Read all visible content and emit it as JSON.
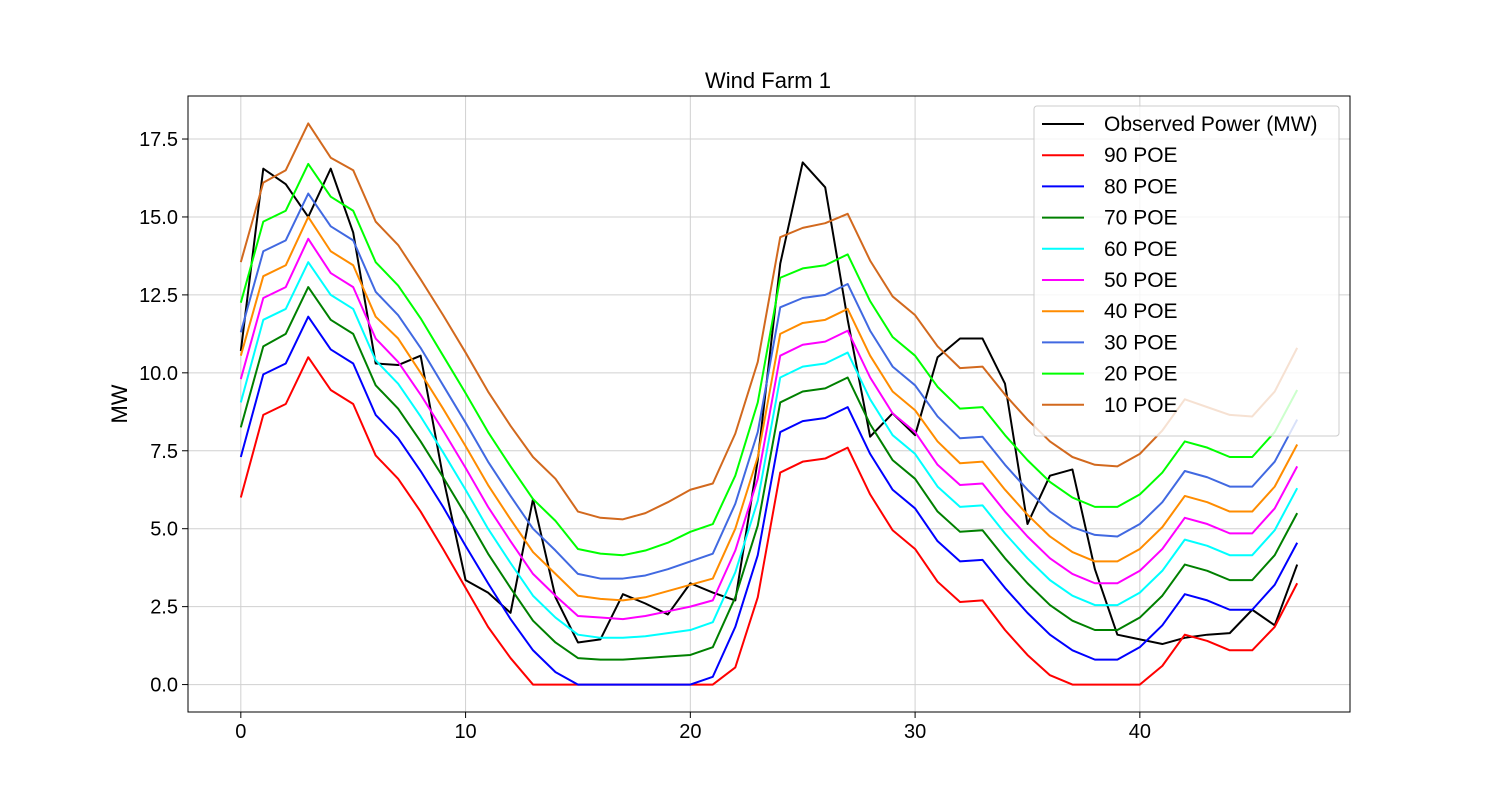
{
  "chart_data": {
    "type": "line",
    "title": "Wind Farm 1",
    "xlabel": "",
    "ylabel": "MW",
    "xlim": [
      -2.35,
      49.35
    ],
    "ylim": [
      -0.88,
      18.88
    ],
    "xticks": [
      0,
      10,
      20,
      30,
      40
    ],
    "yticks": [
      0.0,
      2.5,
      5.0,
      7.5,
      10.0,
      12.5,
      15.0,
      17.5
    ],
    "grid": true,
    "legend_position": "top-right",
    "x": [
      0,
      1,
      2,
      3,
      4,
      5,
      6,
      7,
      8,
      9,
      10,
      11,
      12,
      13,
      14,
      15,
      16,
      17,
      18,
      19,
      20,
      21,
      22,
      23,
      24,
      25,
      26,
      27,
      28,
      29,
      30,
      31,
      32,
      33,
      34,
      35,
      36,
      37,
      38,
      39,
      40,
      41,
      42,
      43,
      44,
      45,
      46,
      47
    ],
    "series": [
      {
        "name": "Observed Power (MW)",
        "color": "#000000",
        "values": [
          10.7,
          16.55,
          16.05,
          15.0,
          16.55,
          14.5,
          10.3,
          10.25,
          10.55,
          6.65,
          3.35,
          2.95,
          2.3,
          5.95,
          2.8,
          1.35,
          1.45,
          2.9,
          2.6,
          2.25,
          3.25,
          2.95,
          2.7,
          7.2,
          13.5,
          16.75,
          15.95,
          11.7,
          7.95,
          8.7,
          8.0,
          10.5,
          11.1,
          11.1,
          9.65,
          5.15,
          6.7,
          6.9,
          3.7,
          1.6,
          1.45,
          1.3,
          1.5,
          1.6,
          1.65,
          2.4,
          1.9,
          3.85
        ]
      },
      {
        "name": "90 POE",
        "color": "#ff0000",
        "values": [
          6.0,
          8.65,
          9.0,
          10.5,
          9.45,
          9.0,
          7.35,
          6.6,
          5.55,
          4.35,
          3.1,
          1.85,
          0.85,
          0.0,
          0.0,
          0.0,
          0.0,
          0.0,
          0.0,
          0.0,
          0.0,
          0.0,
          0.55,
          2.8,
          6.8,
          7.15,
          7.25,
          7.6,
          6.1,
          4.95,
          4.35,
          3.3,
          2.65,
          2.7,
          1.75,
          0.95,
          0.3,
          0.0,
          0.0,
          0.0,
          0.0,
          0.6,
          1.6,
          1.4,
          1.1,
          1.1,
          1.85,
          3.25
        ]
      },
      {
        "name": "80 POE",
        "color": "#0000ff",
        "values": [
          7.3,
          9.95,
          10.3,
          11.8,
          10.75,
          10.3,
          8.65,
          7.9,
          6.85,
          5.7,
          4.45,
          3.25,
          2.1,
          1.1,
          0.4,
          0.0,
          0.0,
          0.0,
          0.0,
          0.0,
          0.0,
          0.25,
          1.85,
          4.15,
          8.1,
          8.45,
          8.55,
          8.9,
          7.4,
          6.25,
          5.65,
          4.6,
          3.95,
          4.0,
          3.1,
          2.3,
          1.6,
          1.1,
          0.8,
          0.8,
          1.2,
          1.9,
          2.9,
          2.7,
          2.4,
          2.4,
          3.2,
          4.55
        ]
      },
      {
        "name": "70 POE",
        "color": "#008000",
        "values": [
          8.25,
          10.85,
          11.25,
          12.75,
          11.7,
          11.25,
          9.6,
          8.85,
          7.8,
          6.65,
          5.45,
          4.2,
          3.1,
          2.05,
          1.35,
          0.85,
          0.8,
          0.8,
          0.85,
          0.9,
          0.95,
          1.2,
          2.8,
          5.1,
          9.05,
          9.4,
          9.5,
          9.85,
          8.35,
          7.2,
          6.6,
          5.55,
          4.9,
          4.95,
          4.05,
          3.25,
          2.55,
          2.05,
          1.75,
          1.75,
          2.15,
          2.85,
          3.85,
          3.65,
          3.35,
          3.35,
          4.15,
          5.5
        ]
      },
      {
        "name": "60 POE",
        "color": "#00ffff",
        "values": [
          9.05,
          11.7,
          12.05,
          13.55,
          12.5,
          12.05,
          10.4,
          9.65,
          8.6,
          7.45,
          6.25,
          5.0,
          3.9,
          2.85,
          2.15,
          1.6,
          1.5,
          1.5,
          1.55,
          1.65,
          1.75,
          2.0,
          3.6,
          5.9,
          9.85,
          10.2,
          10.3,
          10.65,
          9.15,
          8.0,
          7.4,
          6.35,
          5.7,
          5.75,
          4.85,
          4.05,
          3.35,
          2.85,
          2.55,
          2.55,
          2.95,
          3.65,
          4.65,
          4.45,
          4.15,
          4.15,
          4.95,
          6.3
        ]
      },
      {
        "name": "50 POE",
        "color": "#ff00ff",
        "values": [
          9.8,
          12.4,
          12.75,
          14.3,
          13.2,
          12.75,
          11.1,
          10.35,
          9.3,
          8.15,
          6.95,
          5.7,
          4.6,
          3.55,
          2.85,
          2.2,
          2.15,
          2.1,
          2.2,
          2.35,
          2.5,
          2.7,
          4.3,
          6.6,
          10.55,
          10.9,
          11.0,
          11.35,
          9.85,
          8.7,
          8.1,
          7.05,
          6.4,
          6.45,
          5.55,
          4.75,
          4.05,
          3.55,
          3.25,
          3.25,
          3.65,
          4.35,
          5.35,
          5.15,
          4.85,
          4.85,
          5.65,
          7.0
        ]
      },
      {
        "name": "40 POE",
        "color": "#ff8c00",
        "values": [
          10.55,
          13.1,
          13.45,
          15.0,
          13.9,
          13.45,
          11.8,
          11.1,
          10.0,
          8.85,
          7.65,
          6.4,
          5.3,
          4.25,
          3.55,
          2.85,
          2.75,
          2.7,
          2.8,
          3.0,
          3.2,
          3.4,
          5.0,
          7.3,
          11.25,
          11.6,
          11.7,
          12.05,
          10.55,
          9.4,
          8.8,
          7.8,
          7.1,
          7.15,
          6.25,
          5.45,
          4.75,
          4.25,
          3.95,
          3.95,
          4.35,
          5.05,
          6.05,
          5.85,
          5.55,
          5.55,
          6.35,
          7.7
        ]
      },
      {
        "name": "30 POE",
        "color": "#4169e1",
        "values": [
          11.3,
          13.9,
          14.25,
          15.75,
          14.7,
          14.25,
          12.6,
          11.85,
          10.8,
          9.6,
          8.4,
          7.15,
          6.05,
          5.0,
          4.3,
          3.55,
          3.4,
          3.4,
          3.5,
          3.7,
          3.95,
          4.2,
          5.8,
          8.1,
          12.1,
          12.4,
          12.5,
          12.85,
          11.35,
          10.2,
          9.6,
          8.6,
          7.9,
          7.95,
          7.05,
          6.25,
          5.55,
          5.05,
          4.8,
          4.75,
          5.15,
          5.85,
          6.85,
          6.65,
          6.35,
          6.35,
          7.15,
          8.5
        ]
      },
      {
        "name": "20 POE",
        "color": "#00ff00",
        "values": [
          12.25,
          14.85,
          15.2,
          16.7,
          15.65,
          15.2,
          13.55,
          12.8,
          11.75,
          10.55,
          9.35,
          8.1,
          7.0,
          5.95,
          5.25,
          4.35,
          4.2,
          4.15,
          4.3,
          4.55,
          4.9,
          5.15,
          6.7,
          9.05,
          13.05,
          13.35,
          13.45,
          13.8,
          12.3,
          11.15,
          10.55,
          9.55,
          8.85,
          8.9,
          8.0,
          7.2,
          6.5,
          6.0,
          5.7,
          5.7,
          6.1,
          6.8,
          7.8,
          7.6,
          7.3,
          7.3,
          8.1,
          9.45
        ]
      },
      {
        "name": "10 POE",
        "color": "#d2691e",
        "values": [
          13.55,
          16.1,
          16.5,
          18.0,
          16.9,
          16.5,
          14.85,
          14.1,
          13.0,
          11.85,
          10.65,
          9.4,
          8.3,
          7.3,
          6.6,
          5.55,
          5.35,
          5.3,
          5.5,
          5.85,
          6.25,
          6.45,
          8.05,
          10.35,
          14.35,
          14.65,
          14.8,
          15.1,
          13.6,
          12.45,
          11.85,
          10.85,
          10.15,
          10.2,
          9.3,
          8.5,
          7.8,
          7.3,
          7.05,
          7.0,
          7.4,
          8.15,
          9.15,
          8.9,
          8.65,
          8.6,
          9.4,
          10.8
        ]
      }
    ]
  }
}
